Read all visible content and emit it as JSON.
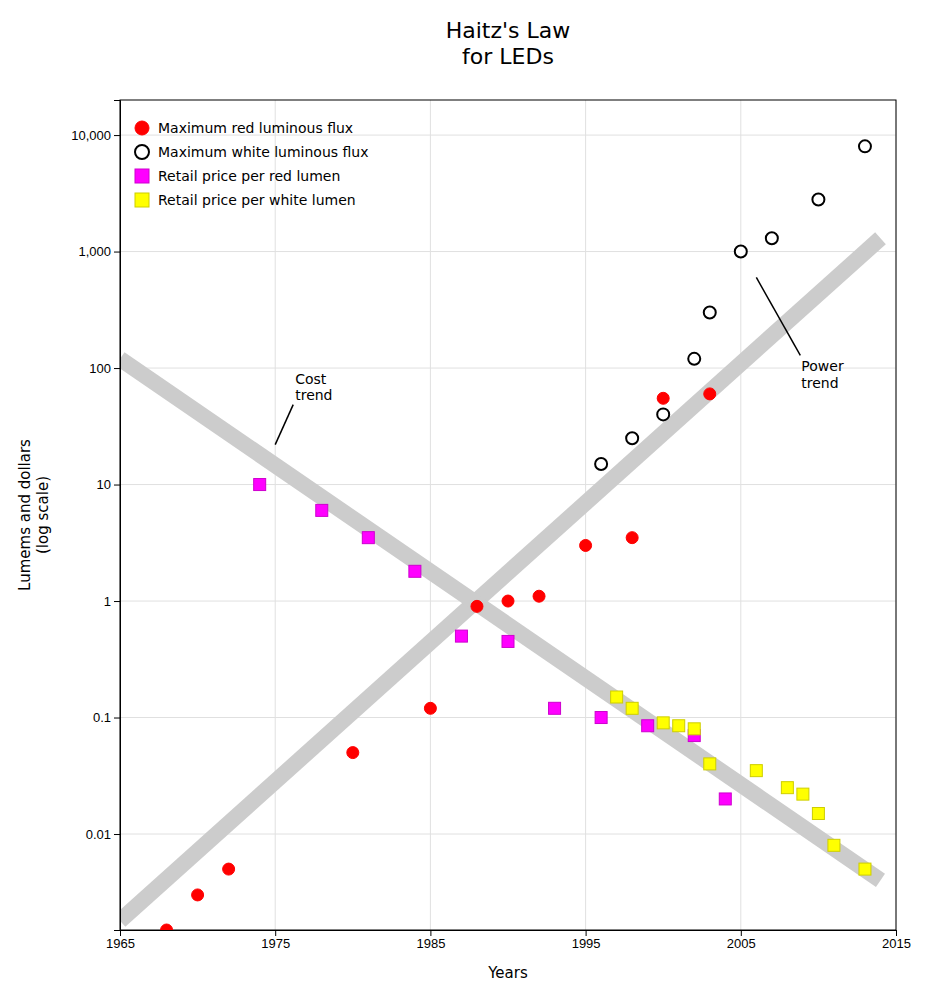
{
  "chart_data": {
    "type": "scatter",
    "title": "Haitz's Law\nfor LEDs",
    "x_label": "Years",
    "y_label": "Lumems and dollars\n(log scale)",
    "log": "y",
    "grid": true,
    "legend": "upper left",
    "xlim": [
      1965,
      2015
    ],
    "ylim": [
      0.0015,
      20000
    ],
    "xticks": [
      1965,
      1975,
      1985,
      1995,
      2005,
      2015
    ],
    "yticks": [
      0.01,
      0.1,
      1,
      10,
      100,
      {
        "value": 1000,
        "label": "1,000"
      },
      {
        "value": 10000,
        "label": "10,000"
      }
    ],
    "series": [
      {
        "type": "line",
        "color": "#cccccc",
        "x": [
          1965,
          2014
        ],
        "values": [
          0.0018,
          1300
        ]
      },
      {
        "type": "line",
        "color": "#cccccc",
        "x": [
          1965,
          2014
        ],
        "values": [
          120,
          0.004
        ]
      },
      {
        "name": "Maximum red luminous flux",
        "color": "#ff0000",
        "marker": "circle",
        "x": [
          1968,
          1970,
          1972,
          1980,
          1985,
          1988,
          1990,
          1992,
          1995,
          1998,
          2000,
          2003
        ],
        "values": [
          0.0015,
          0.003,
          0.005,
          0.05,
          0.12,
          0.9,
          1.0,
          1.1,
          3.0,
          3.5,
          55,
          60
        ]
      },
      {
        "name": "Maximum white luminous flux",
        "color": "#000000",
        "marker": "open-circle",
        "x": [
          1996,
          1998,
          2000,
          2002,
          2003,
          2005,
          2007,
          2010,
          2013
        ],
        "values": [
          15,
          25,
          40,
          120,
          300,
          1000,
          1300,
          2800,
          8000
        ]
      },
      {
        "name": "Retail price per red lumen",
        "color": "#ff00ff",
        "marker": "square",
        "x": [
          1974,
          1978,
          1981,
          1984,
          1987,
          1990,
          1993,
          1996,
          1999,
          2002,
          2004
        ],
        "values": [
          10,
          6,
          3.5,
          1.8,
          0.5,
          0.45,
          0.12,
          0.1,
          0.085,
          0.07,
          0.02
        ]
      },
      {
        "name": "Retail price per white lumen",
        "color": "#ffff00",
        "marker": "square",
        "x": [
          1997,
          1998,
          2000,
          2001,
          2002,
          2003,
          2006,
          2008,
          2009,
          2010,
          2011,
          2013
        ],
        "values": [
          0.15,
          0.12,
          0.09,
          0.085,
          0.08,
          0.04,
          0.035,
          0.025,
          0.022,
          0.015,
          0.008,
          0.005
        ]
      }
    ],
    "annotations": [
      {
        "text": "Cost\ntrend",
        "x": 1975,
        "y": 22
      },
      {
        "text": "Power\ntrend",
        "x": 2006,
        "y": 600
      }
    ]
  }
}
